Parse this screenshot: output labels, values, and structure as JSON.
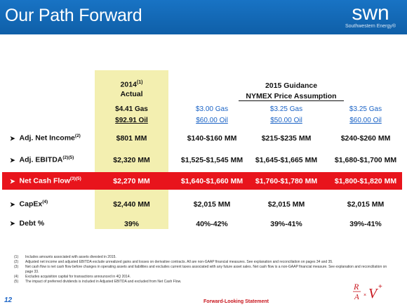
{
  "header": {
    "title": "Our Path Forward",
    "logo_mark": "swn",
    "logo_sub": "Southwestern Energy®"
  },
  "table": {
    "actual_header": {
      "year": "2014",
      "note": "(1)",
      "label": "Actual"
    },
    "guidance_header": "2015 Guidance",
    "nymex_header": "NYMEX Price Assumption",
    "price_columns": [
      {
        "gas": "$4.41 Gas",
        "oil": "$92.91 Oil"
      },
      {
        "gas": "$3.00 Gas",
        "oil": "$60.00 Oil"
      },
      {
        "gas": "$3.25 Gas",
        "oil": "$50.00 Oil"
      },
      {
        "gas": "$3.25 Gas",
        "oil": "$60.00 Oil"
      }
    ],
    "rows": [
      {
        "label": "Adj. Net Income",
        "note": "(2)",
        "values": [
          "$801 MM",
          "$140-$160 MM",
          "$215-$235 MM",
          "$240-$260 MM"
        ]
      },
      {
        "label": "Adj. EBITDA",
        "note": "(2)(5)",
        "values": [
          "$2,320 MM",
          "$1,525-$1,545 MM",
          "$1,645-$1,665 MM",
          "$1,680-$1,700 MM"
        ]
      },
      {
        "label": "Net Cash Flow",
        "note": "(3)(5)",
        "values": [
          "$2,270 MM",
          "$1,640-$1,660 MM",
          "$1,760-$1,780 MM",
          "$1,800-$1,820 MM"
        ]
      },
      {
        "label": "CapEx",
        "note": "(4)",
        "values": [
          "$2,440 MM",
          "$2,015 MM",
          "$2,015 MM",
          "$2,015 MM"
        ]
      },
      {
        "label": "Debt %",
        "note": "",
        "values": [
          "39%",
          "40%-42%",
          "39%-41%",
          "39%-41%"
        ]
      }
    ]
  },
  "footnotes": [
    {
      "num": "(1)",
      "text": "Includes amounts associated with assets divested in 2015."
    },
    {
      "num": "(2)",
      "text": "Adjusted net income and adjusted EBITDA exclude unrealized gains and losses on derivative contracts. All are non-GAAP financial measures. See explanation and reconciliation on pages 34 and 35."
    },
    {
      "num": "(3)",
      "text": "Net cash flow is net cash flow before changes in operating assets and liabilities and excludes current taxes associated with any future asset sales. Net cash flow is a non-GAAP financial measure. See explanation and reconciliation on page 33."
    },
    {
      "num": "(4)",
      "text": "Excludes acquisition capital for transactions announced in 4Q 2014."
    },
    {
      "num": "(5)",
      "text": "The impact of preferred dividends is included in Adjusted EBITDA and excluded from Net Cash Flow."
    }
  ],
  "footer": {
    "page_number": "12",
    "forward_looking": "Forward-Looking Statement",
    "rav_logo": "R/A × V+"
  },
  "colors": {
    "header_blue": "#1873c4",
    "actual_column": "#f3efb0",
    "highlight_red": "#e8141c",
    "price_blue": "#1a63c6"
  },
  "icons": [
    "arrow-bullet-icon"
  ]
}
